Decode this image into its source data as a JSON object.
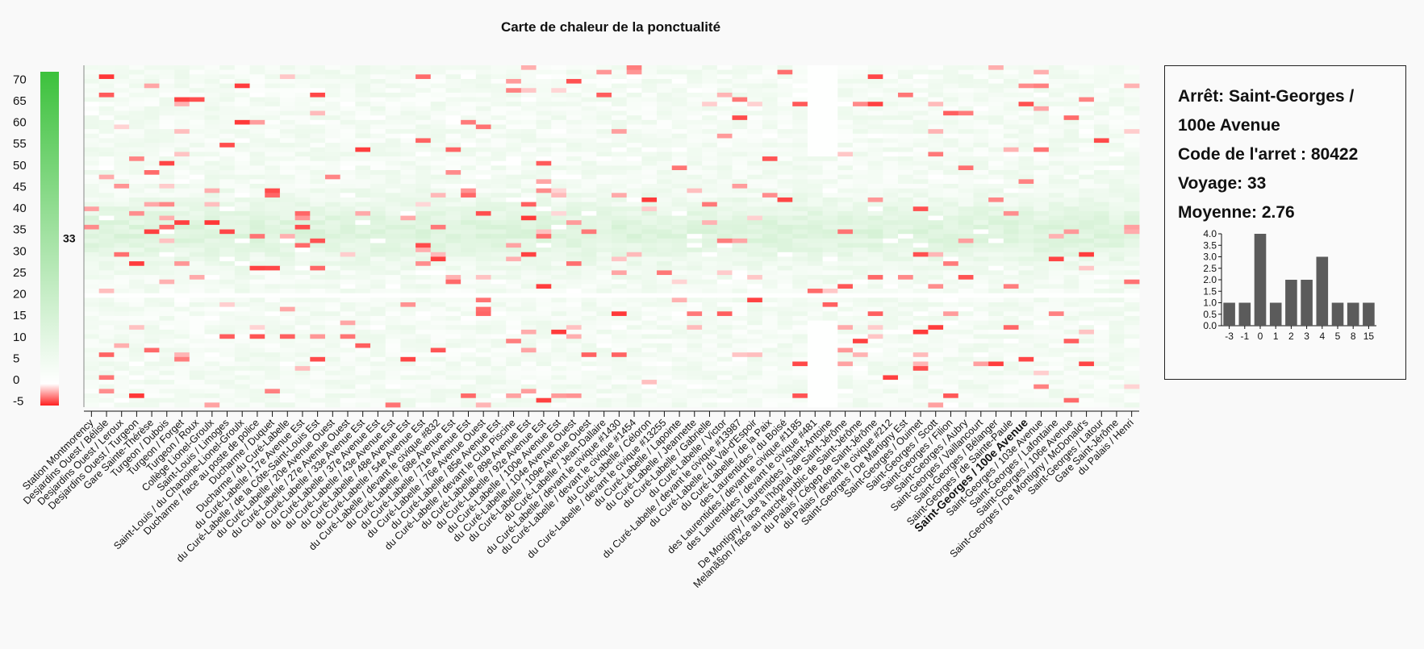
{
  "chart_data": {
    "type": "heatmap",
    "title": "Carte de chaleur de la ponctualité",
    "y_range": [
      -6,
      71
    ],
    "y_ticks": [
      70,
      65,
      60,
      55,
      50,
      45,
      40,
      35,
      30,
      25,
      20,
      15,
      10,
      5,
      0,
      -5
    ],
    "color_scale": {
      "min": -5,
      "max": 70,
      "min_color": "#ff0000",
      "mid_color": "#ffffff",
      "max_color": "#3cc13c"
    },
    "color_scale_marker": "33",
    "trips": 75,
    "stops": [
      "Station Montmorency",
      "Desjardins Ouest / Bélisle",
      "Desjardins Ouest / Leroux",
      "Desjardins Ouest / Turgeon",
      "Gare Sainte-Thérèse",
      "Turgeon / Dubois",
      "Turgeon / Forget",
      "Turgeon / Roux",
      "Collège Lionel-Groulx",
      "Saint-Louis / Limoges",
      "Saint-Louis / du Chanoine-Lionel-Groulx",
      "Ducharme / face au poste de police",
      "Ducharme / Duquet",
      "Ducharme / du Curé-Labelle",
      "du Curé-Labelle / 17e Avenue Est",
      "du Curé-Labelle / de la Côte-Saint-Louis Est",
      "du Curé-Labelle / 20e Avenue Ouest",
      "du Curé-Labelle / 27e Avenue Ouest",
      "du Curé-Labelle / 33e Avenue Est",
      "du Curé-Labelle / 37e Avenue Est",
      "du Curé-Labelle / 43e Avenue Est",
      "du Curé-Labelle / 48e Avenue Est",
      "du Curé-Labelle / 54e Avenue Est",
      "du Curé-Labelle / devant le civique #832",
      "du Curé-Labelle / 68e Avenue Est",
      "du Curé-Labelle / 71e Avenue Est",
      "du Curé-Labelle / 76e Avenue Ouest",
      "du Curé-Labelle / 85e Avenue Est",
      "du Curé-Labelle / devant le Club Piscine",
      "du Curé-Labelle / 89e Avenue Est",
      "du Curé-Labelle / 92e Avenue Est",
      "du Curé-Labelle / 100e Avenue Est",
      "du Curé-Labelle / 104e Avenue Ouest",
      "du Curé-Labelle / 109e Avenue Ouest",
      "du Curé-Labelle / Jean-Dallaire",
      "du Curé-Labelle / devant le civique #1430",
      "du Curé-Labelle / devant le civique #1454",
      "du Curé-Labelle / Céloron",
      "du Curé-Labelle / devant le civique #13255",
      "du Curé-Labelle / Lapointe",
      "du Curé-Labelle / Jeannette",
      "du Curé-Labelle / Gabrielle",
      "du Curé-Labelle / Victor",
      "du Curé-Labelle / devant le civique #13987",
      "du Curé-Labelle / du Val-d'Espoir",
      "du Curé-Labelle / de la Paix",
      "des Laurentides / du Boisé",
      "des Laurentides / devant le civique #1185",
      "des Laurentides / devant le civique #481",
      "des Laurentides / Saint-Antoine",
      "De Montigny / face à l'hôpital de Saint-Jérôme",
      "Melanã§on / face au marché public de Saint-Jérôme",
      "du Palais / Cégep de Saint-Jérôme",
      "du Palais / devant le civique #212",
      "Saint-Georges / De Martigny Est",
      "Saint-Georges / Ouimet",
      "Saint-Georges / Scott",
      "Saint-Georges / Filion",
      "Saint-Georges / Aubry",
      "Saint-Georges / Vaillancourt",
      "Saint-Georges / Bélanger",
      "Saint-Georges / de Sainte-Paule",
      "Saint-Georges / 100e Avenue",
      "Saint-Georges / 103e Avenue",
      "Saint-Georges / Lafontaine",
      "Saint-Georges / 106e Avenue",
      "Saint-Georges / De Montigny / McDonald's",
      "Saint-Georges / Latour",
      "Gare Saint-Jérôme",
      "du Palais / Henri"
    ],
    "selected_stop": "Saint-Georges / 100e Avenue",
    "histogram": {
      "type": "bar",
      "categories": [
        "-3",
        "-1",
        "0",
        "1",
        "2",
        "3",
        "4",
        "5",
        "8",
        "15"
      ],
      "values": [
        1.0,
        1.0,
        4.0,
        1.0,
        2.0,
        2.0,
        3.0,
        1.0,
        1.0,
        1.0
      ],
      "y_range": [
        0,
        4
      ],
      "y_ticks": [
        "4.0",
        "3.5",
        "3.0",
        "2.5",
        "2.0",
        "1.5",
        "1.0",
        "0.5",
        "0.0"
      ]
    }
  },
  "details": {
    "stop_label": "Arrêt:",
    "stop_value": "Saint-Georges / 100e Avenue",
    "code_label": "Code de l'arret :",
    "code_value": "80422",
    "trip_label": "Voyage:",
    "trip_value": "33",
    "mean_label": "Moyenne:",
    "mean_value": "2.76"
  }
}
